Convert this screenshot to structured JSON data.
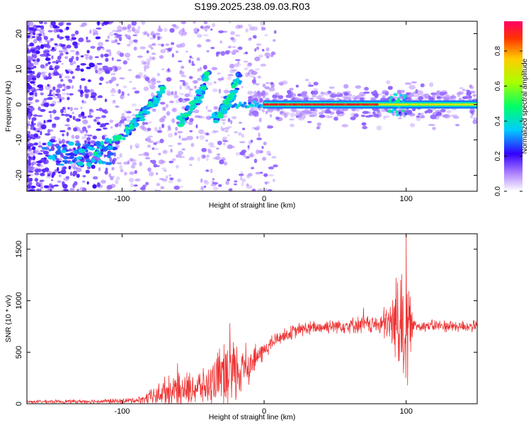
{
  "title": "S199.2025.238.09.03.R03",
  "chart_data": [
    {
      "type": "heatmap",
      "name": "spectrogram",
      "xlabel": "Height of straight line (km)",
      "ylabel": "Frequency (Hz)",
      "xlim": [
        -167,
        150
      ],
      "ylim": [
        -24.5,
        23.5
      ],
      "xticks": [
        -100,
        0,
        100
      ],
      "yticks": [
        -20,
        -10,
        0,
        10,
        20
      ],
      "colorbar": {
        "label": "Normalized spectral amplitude",
        "range": [
          0.0,
          0.97
        ],
        "ticks": [
          0.0,
          0.2,
          0.4,
          0.6,
          0.8
        ]
      },
      "features": {
        "carrier_line": {
          "x_start": 0,
          "x_end": 150,
          "freq_hz": 0,
          "amplitude_range": [
            0.6,
            0.95
          ]
        },
        "arc_branches": [
          {
            "points": [
              [
                -120,
                -13
              ],
              [
                -100,
                -9
              ],
              [
                -90,
                -5
              ],
              [
                -80,
                0
              ],
              [
                -70,
                5
              ]
            ]
          },
          {
            "points": [
              [
                -60,
                -5
              ],
              [
                -50,
                -1
              ],
              [
                -45,
                3
              ],
              [
                -40,
                9
              ]
            ]
          },
          {
            "points": [
              [
                -35,
                -4
              ],
              [
                -28,
                -1
              ],
              [
                -22,
                3
              ],
              [
                -18,
                8
              ]
            ]
          }
        ]
      }
    },
    {
      "type": "line",
      "name": "snr",
      "xlabel": "Height of straight line (km)",
      "ylabel": "SNR (10 * v/v)",
      "xlim": [
        -167,
        150
      ],
      "ylim": [
        0,
        1650
      ],
      "xticks": [
        -100,
        0,
        100
      ],
      "yticks": [
        0,
        500,
        1000,
        1500
      ],
      "color": "#ee3333",
      "envelope": [
        {
          "x": -167,
          "base": 20,
          "spread": 15
        },
        {
          "x": -100,
          "base": 25,
          "spread": 25
        },
        {
          "x": -85,
          "base": 40,
          "spread": 40
        },
        {
          "x": -70,
          "base": 120,
          "spread": 150
        },
        {
          "x": -50,
          "base": 150,
          "spread": 180
        },
        {
          "x": -40,
          "base": 170,
          "spread": 180
        },
        {
          "x": -30,
          "base": 250,
          "spread": 330
        },
        {
          "x": -20,
          "base": 300,
          "spread": 330
        },
        {
          "x": -10,
          "base": 380,
          "spread": 180
        },
        {
          "x": 0,
          "base": 520,
          "spread": 90
        },
        {
          "x": 10,
          "base": 640,
          "spread": 70
        },
        {
          "x": 25,
          "base": 720,
          "spread": 70
        },
        {
          "x": 50,
          "base": 760,
          "spread": 80
        },
        {
          "x": 80,
          "base": 770,
          "spread": 90
        },
        {
          "x": 90,
          "base": 770,
          "spread": 300
        },
        {
          "x": 100,
          "base": 760,
          "spread": 600
        },
        {
          "x": 105,
          "base": 760,
          "spread": 60
        },
        {
          "x": 150,
          "base": 750,
          "spread": 60
        }
      ],
      "peaks": [
        {
          "x": 100,
          "y": 1650
        },
        {
          "x": 101,
          "y": 180
        },
        {
          "x": 96,
          "y": 1200
        },
        {
          "x": 93,
          "y": 1220
        },
        {
          "x": 98,
          "y": 300
        },
        {
          "x": 70,
          "y": 930
        },
        {
          "x": -24,
          "y": 780
        },
        {
          "x": -23,
          "y": 60
        },
        {
          "x": -13,
          "y": 590
        },
        {
          "x": -61,
          "y": 390
        }
      ]
    }
  ]
}
